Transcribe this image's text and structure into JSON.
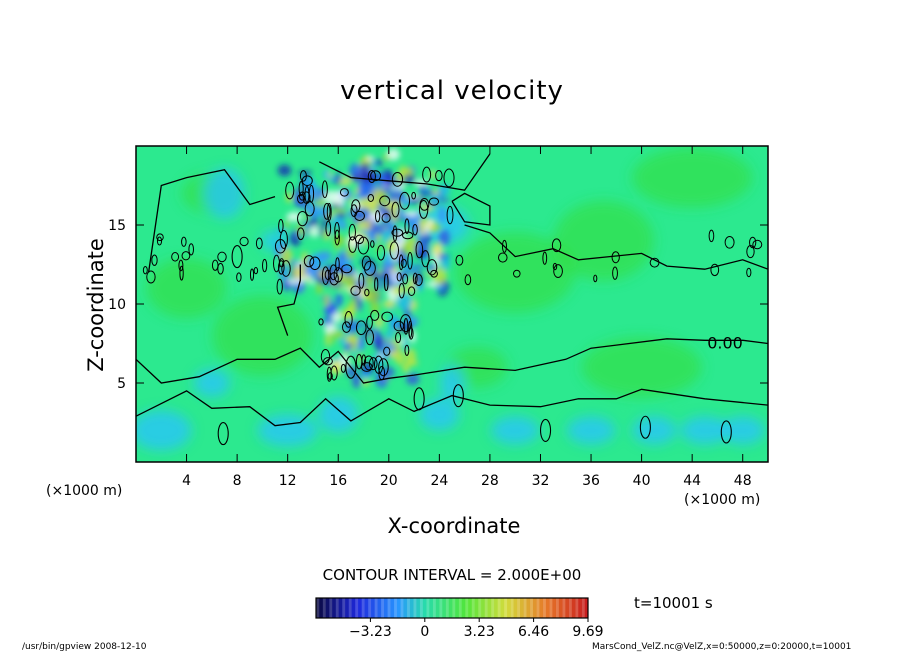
{
  "window": {
    "footer_left": "/usr/bin/gpview   2008-12-10",
    "footer_right": "MarsCond_VelZ.nc@VelZ,x=0:50000,z=0:20000,t=10001"
  },
  "colors": {
    "background_field": "#2ce98f",
    "negative": "#1420b4",
    "positive": "#c8e23c",
    "contour_line": "#000000"
  },
  "chart_data": {
    "type": "heatmap",
    "title": "vertical velocity",
    "xlabel": "X-coordinate",
    "ylabel": "Z-coordinate",
    "x_unit": "(×1000 m)",
    "xlim": [
      0,
      50
    ],
    "ylim": [
      0,
      20
    ],
    "x_ticks": [
      4,
      8,
      12,
      16,
      20,
      24,
      28,
      32,
      36,
      40,
      44,
      48
    ],
    "y_ticks": [
      5,
      10,
      15
    ],
    "contour_interval": "CONTOUR INTERVAL = 2.000E+00",
    "contour_annotation": "0.00",
    "time": "t=10001 s",
    "colorbar": {
      "min": -6.46,
      "max": 9.69,
      "tick_labels": [
        "−3.23",
        "0",
        "3.23",
        "6.46",
        "9.69"
      ],
      "tick_values": [
        -3.23,
        0,
        3.23,
        6.46,
        9.69
      ]
    }
  }
}
